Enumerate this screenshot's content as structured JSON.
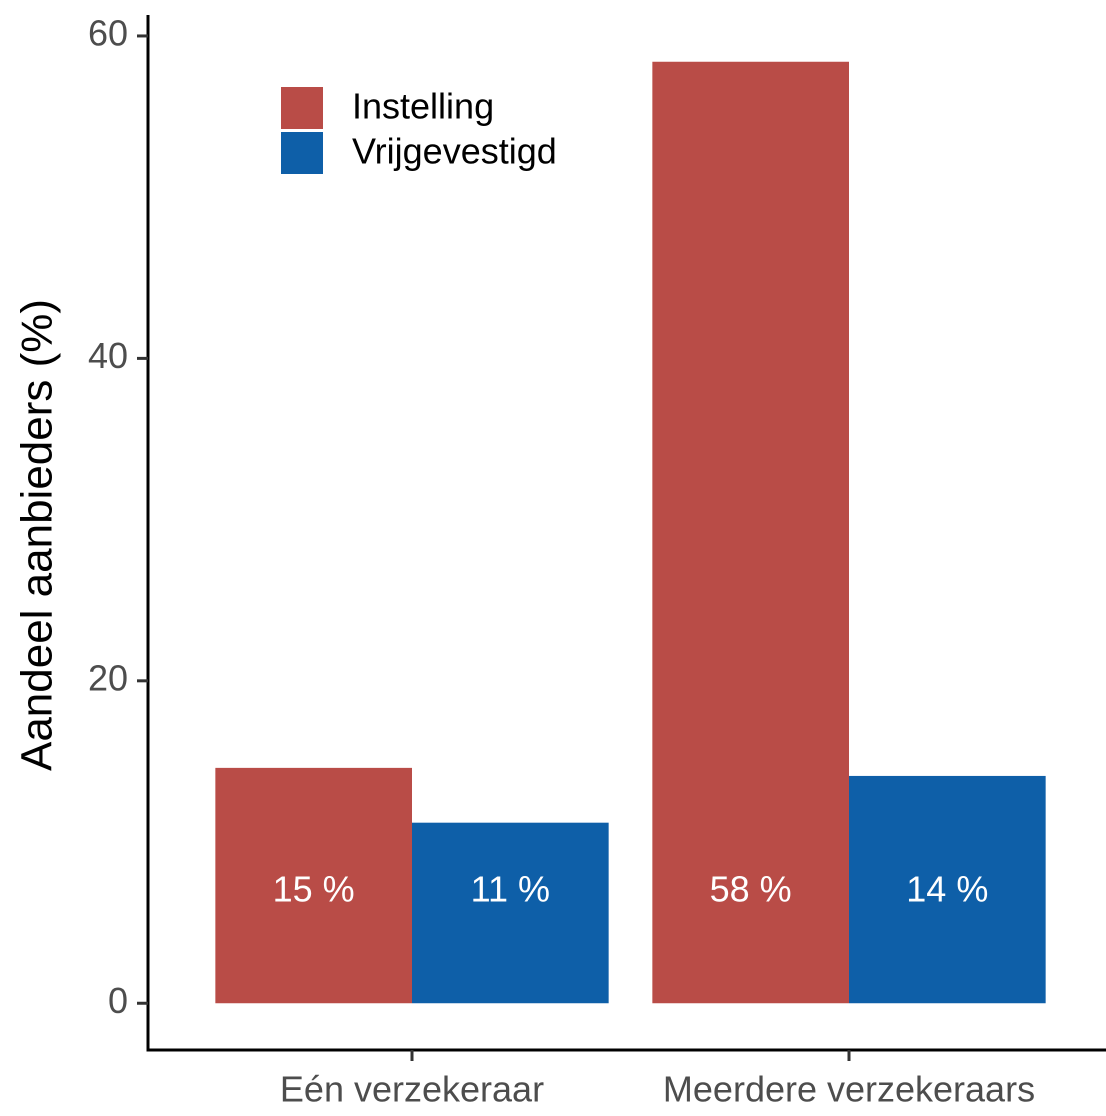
{
  "chart_data": {
    "type": "bar",
    "y_axis_label": "Aandeel aanbieders (%)",
    "categories": [
      "Eén verzekeraar",
      "Meerdere verzekeraars"
    ],
    "series": [
      {
        "name": "Instelling",
        "color": "#b94c47",
        "values": [
          14.6,
          58.4
        ],
        "value_labels": [
          "15 %",
          "58 %"
        ]
      },
      {
        "name": "Vrijgevestigd",
        "color": "#0e5fa8",
        "values": [
          11.2,
          14.1
        ],
        "value_labels": [
          "11 %",
          "14 %"
        ]
      }
    ],
    "ylim": [
      -2.9,
      61.3
    ],
    "yticks": [
      0,
      20,
      40,
      60
    ],
    "grid": false,
    "legend": "top-left"
  }
}
